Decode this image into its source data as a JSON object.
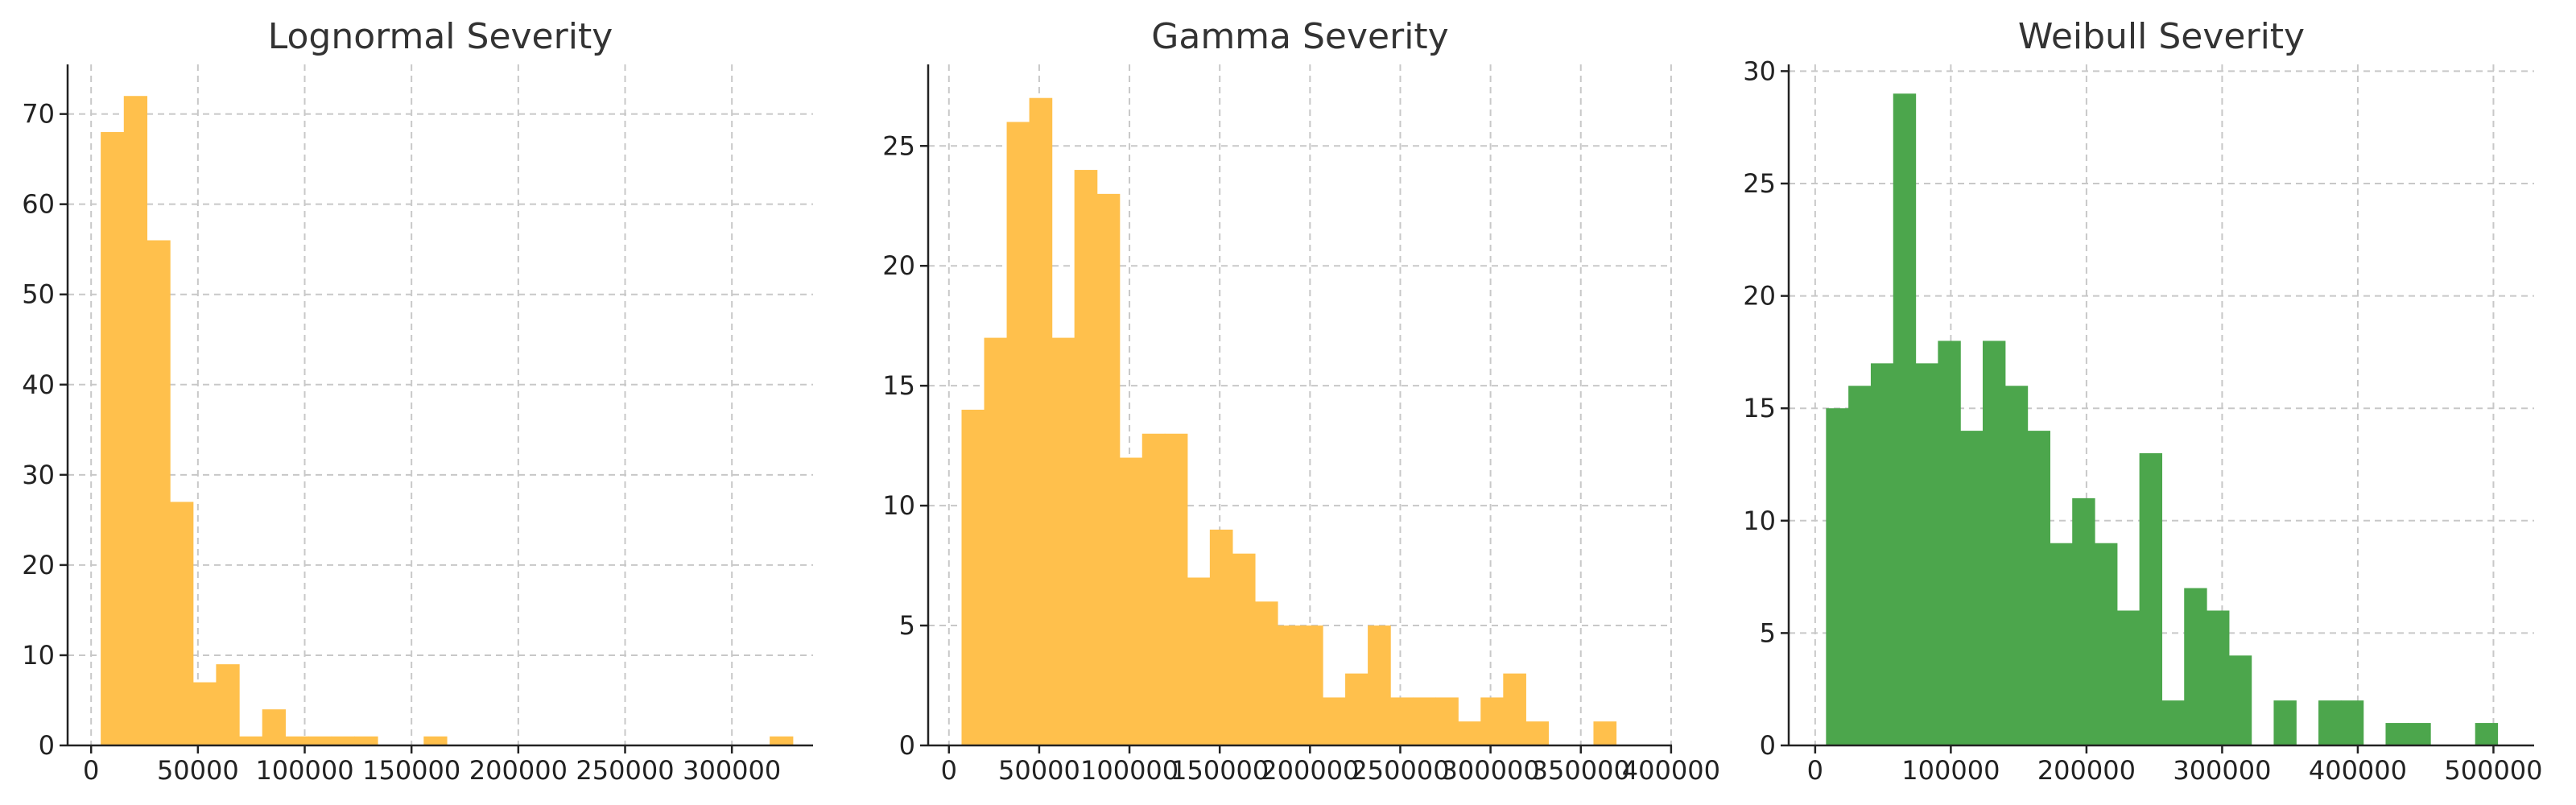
{
  "chart_data": [
    {
      "type": "bar",
      "title": "Lognormal Severity",
      "xlabel": "",
      "ylabel": "",
      "color": "#FFC04C",
      "grid": true,
      "xlim": [
        -11000,
        338000
      ],
      "ylim": [
        0,
        75.5
      ],
      "xticks": [
        0,
        50000,
        100000,
        150000,
        200000,
        250000,
        300000
      ],
      "xtick_labels": [
        "0",
        "50000",
        "100000",
        "150000",
        "200000",
        "250000",
        "300000"
      ],
      "yticks": [
        0,
        10,
        20,
        30,
        40,
        50,
        60,
        70
      ],
      "ytick_labels": [
        "0",
        "10",
        "20",
        "30",
        "40",
        "50",
        "60",
        "70"
      ],
      "bin_start": 4500,
      "bin_width": 10800,
      "counts": [
        68,
        72,
        56,
        27,
        7,
        9,
        1,
        4,
        1,
        1,
        1,
        1,
        0,
        0,
        1,
        0,
        0,
        0,
        0,
        0,
        0,
        0,
        0,
        0,
        0,
        0,
        0,
        0,
        0,
        1
      ]
    },
    {
      "type": "bar",
      "title": "Gamma Severity",
      "xlabel": "",
      "ylabel": "",
      "color": "#FFC04C",
      "grid": true,
      "xlim": [
        -11500,
        400500
      ],
      "ylim": [
        0,
        28.4
      ],
      "xticks": [
        0,
        50000,
        100000,
        150000,
        200000,
        250000,
        300000,
        350000,
        400000
      ],
      "xtick_labels": [
        "0",
        "50000",
        "100000",
        "150000",
        "200000",
        "250000",
        "300000",
        "350000",
        "400000"
      ],
      "yticks": [
        0,
        5,
        10,
        15,
        20,
        25
      ],
      "ytick_labels": [
        "0",
        "5",
        "10",
        "15",
        "20",
        "25"
      ],
      "bin_start": 7000,
      "bin_width": 12500,
      "counts": [
        14,
        17,
        26,
        27,
        17,
        24,
        23,
        12,
        13,
        13,
        7,
        9,
        8,
        6,
        5,
        5,
        2,
        3,
        5,
        2,
        2,
        2,
        1,
        2,
        3,
        1,
        0,
        0,
        1
      ]
    },
    {
      "type": "bar",
      "title": "Weibull Severity",
      "xlabel": "",
      "ylabel": "",
      "color": "#4CA64C",
      "grid": true,
      "xlim": [
        -19500,
        530000
      ],
      "ylim": [
        0,
        30.3
      ],
      "xticks": [
        0,
        100000,
        200000,
        300000,
        400000,
        500000
      ],
      "xtick_labels": [
        "0",
        "100000",
        "200000",
        "300000",
        "400000",
        "500000"
      ],
      "yticks": [
        0,
        5,
        10,
        15,
        20,
        25,
        30
      ],
      "ytick_labels": [
        "0",
        "5",
        "10",
        "15",
        "20",
        "25",
        "30"
      ],
      "bin_start": 8000,
      "bin_width": 16500,
      "counts": [
        15,
        16,
        17,
        29,
        17,
        18,
        14,
        18,
        16,
        14,
        9,
        11,
        9,
        6,
        13,
        2,
        7,
        6,
        4,
        0,
        2,
        0,
        2,
        2,
        0,
        1,
        1,
        0,
        0,
        1
      ]
    }
  ]
}
